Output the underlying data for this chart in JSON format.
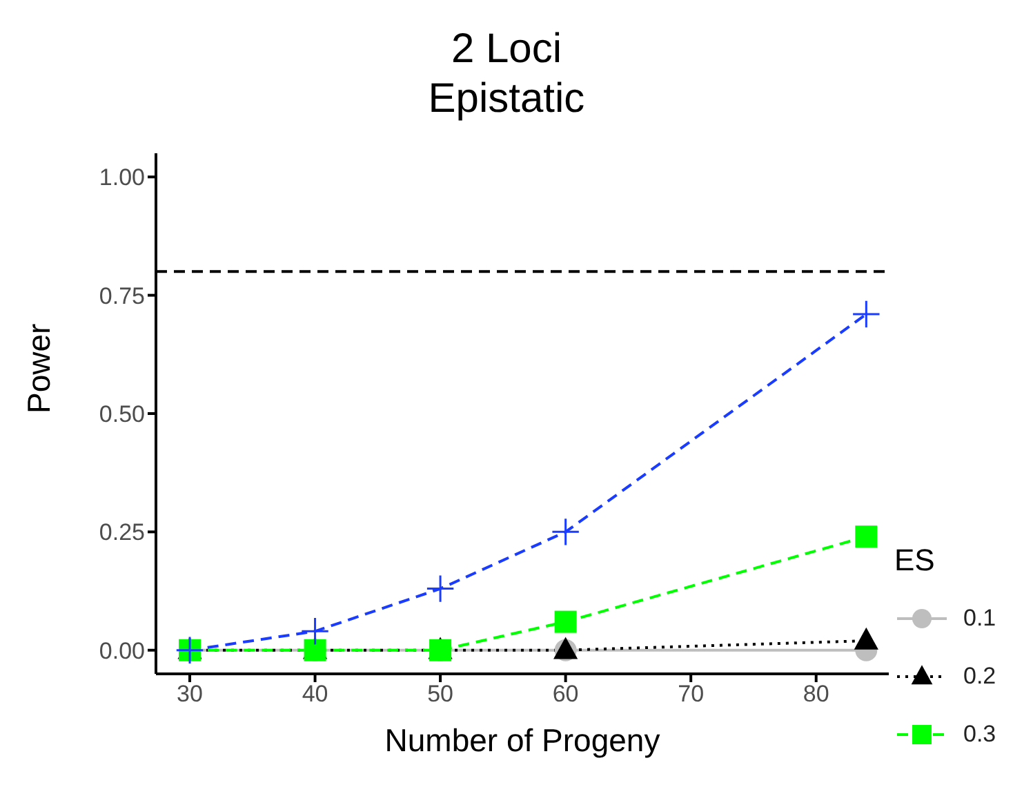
{
  "chart_data": {
    "type": "line",
    "title": "2 Loci",
    "subtitle": "Epistatic",
    "xlabel": "Number of Progeny",
    "ylabel": "Power",
    "legend_title": "ES",
    "legend": "right",
    "x": [
      30,
      40,
      50,
      60,
      84
    ],
    "xlim": [
      27.3,
      85.8
    ],
    "xticks": [
      30,
      40,
      50,
      60,
      70,
      80
    ],
    "ylim": [
      -0.05,
      1.05
    ],
    "yticks": [
      {
        "value": 0,
        "label": "0.00"
      },
      {
        "value": 0.25,
        "label": "0.25"
      },
      {
        "value": 0.5,
        "label": "0.50"
      },
      {
        "value": 0.75,
        "label": "0.75"
      },
      {
        "value": 1,
        "label": "1.00"
      }
    ],
    "ref_lines": [
      {
        "axis": "y",
        "value": 0.8,
        "color": "#000000",
        "line_style": "dashed"
      }
    ],
    "series": [
      {
        "name": "0.1",
        "color": "#bebebe",
        "marker": "circle",
        "line_style": "solid",
        "values": [
          0,
          0,
          0,
          0,
          0
        ]
      },
      {
        "name": "0.2",
        "color": "#000000",
        "marker": "triangle",
        "line_style": "dotted",
        "values": [
          0,
          0,
          0,
          0,
          0.02
        ]
      },
      {
        "name": "0.3",
        "color": "#00ff00",
        "marker": "square",
        "line_style": "dashed",
        "values": [
          0,
          0,
          0,
          0.06,
          0.24
        ]
      },
      {
        "color": "#1a3cff",
        "marker": "cross",
        "line_style": "dashed",
        "values": [
          0,
          0.04,
          0.13,
          0.25,
          0.71
        ]
      }
    ]
  }
}
